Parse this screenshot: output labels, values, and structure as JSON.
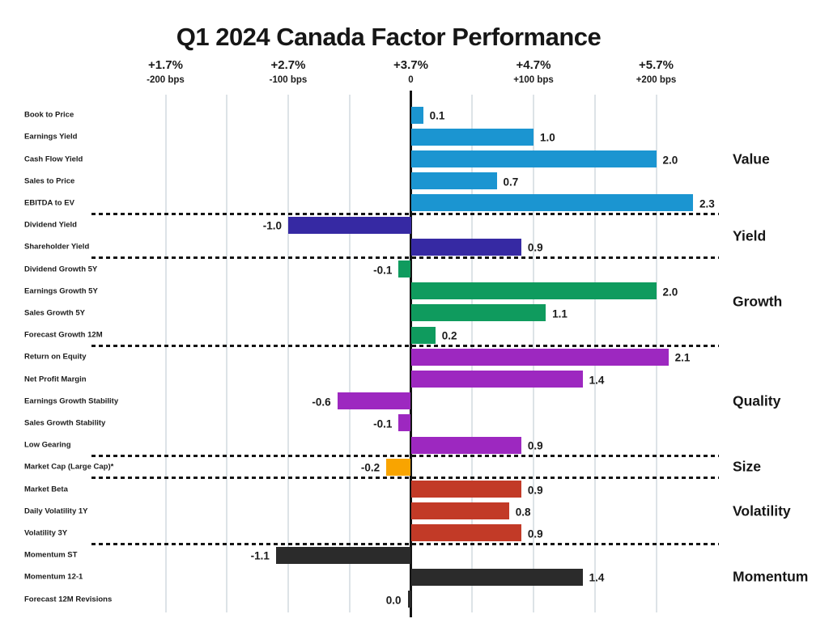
{
  "title": "Q1 2024 Canada Factor Performance",
  "axis": {
    "ticks": [
      {
        "pct": "+1.7%",
        "bps": "-200 bps",
        "value": -2
      },
      {
        "pct": "+2.7%",
        "bps": "-100 bps",
        "value": -1
      },
      {
        "pct": "+3.7%",
        "bps": "0",
        "value": 0
      },
      {
        "pct": "+4.7%",
        "bps": "+100 bps",
        "value": 1
      },
      {
        "pct": "+5.7%",
        "bps": "+200 bps",
        "value": 2
      }
    ]
  },
  "chart_data": {
    "type": "bar",
    "orientation": "horizontal",
    "title": "Q1 2024 Canada Factor Performance",
    "xlim": [
      -2.2,
      2.6
    ],
    "gridline_step": 0.5,
    "grid": true,
    "unit_note": "bar values in % relative performance (100 bps = 1.0)",
    "groups": [
      {
        "name": "Value",
        "color": "#1b95d1",
        "rows": [
          {
            "label": "Book to Price",
            "value": 0.1
          },
          {
            "label": "Earnings Yield",
            "value": 1.0
          },
          {
            "label": "Cash Flow Yield",
            "value": 2.0
          },
          {
            "label": "Sales to Price",
            "value": 0.7
          },
          {
            "label": "EBITDA to EV",
            "value": 2.3
          }
        ]
      },
      {
        "name": "Yield",
        "color": "#3629a3",
        "rows": [
          {
            "label": "Dividend Yield",
            "value": -1.0
          },
          {
            "label": "Shareholder Yield",
            "value": 0.9
          }
        ]
      },
      {
        "name": "Growth",
        "color": "#0f9b5e",
        "rows": [
          {
            "label": "Dividend Growth 5Y",
            "value": -0.1
          },
          {
            "label": "Earnings Growth 5Y",
            "value": 2.0
          },
          {
            "label": "Sales Growth 5Y",
            "value": 1.1
          },
          {
            "label": "Forecast Growth 12M",
            "value": 0.2
          }
        ]
      },
      {
        "name": "Quality",
        "color": "#9d28c0",
        "rows": [
          {
            "label": "Return on Equity",
            "value": 2.1
          },
          {
            "label": "Net Profit Margin",
            "value": 1.4
          },
          {
            "label": "Earnings Growth Stability",
            "value": -0.6
          },
          {
            "label": "Sales Growth Stability",
            "value": -0.1
          },
          {
            "label": "Low Gearing",
            "value": 0.9
          }
        ]
      },
      {
        "name": "Size",
        "color": "#f9a400",
        "rows": [
          {
            "label": "Market Cap (Large Cap)*",
            "value": -0.2
          }
        ]
      },
      {
        "name": "Volatility",
        "color": "#c23a27",
        "rows": [
          {
            "label": "Market Beta",
            "value": 0.9
          },
          {
            "label": "Daily Volatility 1Y",
            "value": 0.8
          },
          {
            "label": "Volatility 3Y",
            "value": 0.9
          }
        ]
      },
      {
        "name": "Momentum",
        "color": "#2b2b2b",
        "rows": [
          {
            "label": "Momentum ST",
            "value": -1.1
          },
          {
            "label": "Momentum 12-1",
            "value": 1.4
          },
          {
            "label": "Forecast 12M Revisions",
            "value": 0.0
          }
        ]
      }
    ]
  }
}
